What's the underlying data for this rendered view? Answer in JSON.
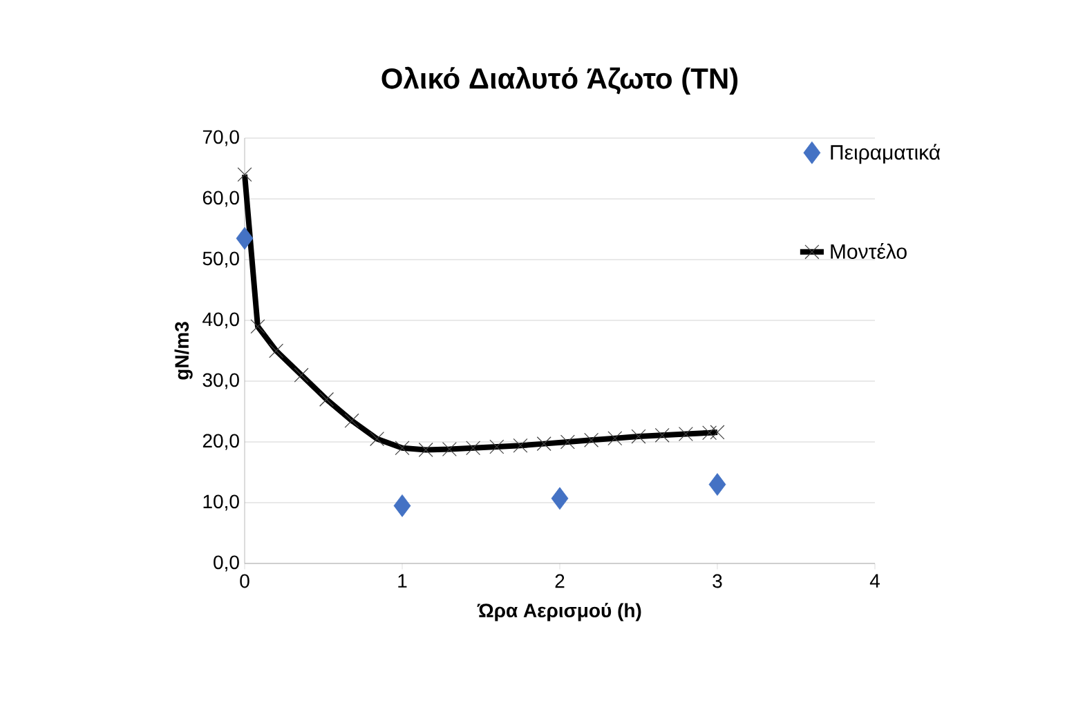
{
  "chart_data": {
    "type": "scatter",
    "title": "Ολικό Διαλυτό Άζωτο (TN)",
    "xlabel": "Ώρα Αερισμού (h)",
    "ylabel": "gN/m3",
    "series": [
      {
        "name": "Πειραματικά",
        "color": "#4472c4",
        "marker": "diamond",
        "x": [
          0,
          1,
          2,
          3
        ],
        "values": [
          53.5,
          9.5,
          10.7,
          13
        ]
      },
      {
        "name": "Μοντέλο",
        "type": "line",
        "color": "#000000",
        "marker": "cross",
        "line_style": "solid",
        "x": [
          0,
          0.083,
          0.2,
          0.36,
          0.52,
          0.68,
          0.84,
          1.0,
          1.15,
          1.3,
          1.45,
          1.6,
          1.75,
          1.9,
          2.05,
          2.2,
          2.35,
          2.5,
          2.65,
          2.8,
          2.95,
          3.0
        ],
        "values": [
          64,
          39,
          35,
          31,
          27,
          23.5,
          20.5,
          19,
          18.7,
          18.8,
          19,
          19.2,
          19.4,
          19.7,
          20,
          20.3,
          20.6,
          20.9,
          21.1,
          21.3,
          21.5,
          21.6
        ]
      }
    ],
    "xlim": [
      0,
      4
    ],
    "xticks": [
      0,
      1,
      2,
      3,
      4
    ],
    "ylim": [
      0,
      70
    ],
    "yticks": [
      {
        "value": 0,
        "label": "0,0"
      },
      {
        "value": 10,
        "label": "10,0"
      },
      {
        "value": 20,
        "label": "20,0"
      },
      {
        "value": 30,
        "label": "30,0"
      },
      {
        "value": 40,
        "label": "40,0"
      },
      {
        "value": 50,
        "label": "50,0"
      },
      {
        "value": 60,
        "label": "60,0"
      },
      {
        "value": 70,
        "label": "70,0"
      }
    ],
    "grid": "y",
    "legend": "top right"
  }
}
